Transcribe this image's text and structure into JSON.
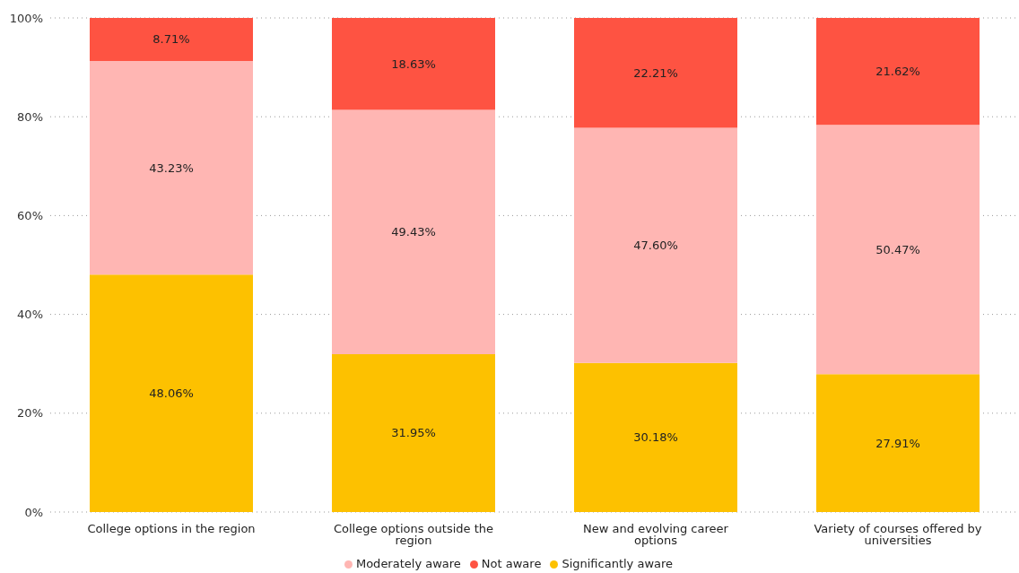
{
  "chart_data": {
    "type": "bar",
    "stacked": true,
    "categories": [
      "College options in the region",
      "College options outside the region",
      "New and evolving career options",
      "Variety of courses offered by universities"
    ],
    "series": [
      {
        "name": "Significantly aware",
        "color": "#fdc100",
        "values": [
          48.06,
          31.95,
          30.18,
          27.91
        ],
        "value_labels": [
          "48.06%",
          "31.95%",
          "30.18%",
          "27.91%"
        ]
      },
      {
        "name": "Moderately aware",
        "color": "#ffb6b3",
        "values": [
          43.23,
          49.43,
          47.6,
          50.47
        ],
        "value_labels": [
          "43.23%",
          "49.43%",
          "47.60%",
          "50.47%"
        ]
      },
      {
        "name": "Not aware",
        "color": "#fe5342",
        "values": [
          8.71,
          18.63,
          22.21,
          21.62
        ],
        "value_labels": [
          "8.71%",
          "18.63%",
          "22.21%",
          "21.62%"
        ]
      }
    ],
    "ylim": [
      0,
      100
    ],
    "yticks": [
      {
        "value": 0,
        "label": "0%"
      },
      {
        "value": 20,
        "label": "20%"
      },
      {
        "value": 40,
        "label": "40%"
      },
      {
        "value": 60,
        "label": "60%"
      },
      {
        "value": 80,
        "label": "80%"
      },
      {
        "value": 100,
        "label": "100%"
      }
    ],
    "grid": "y",
    "legend": "bottom"
  }
}
